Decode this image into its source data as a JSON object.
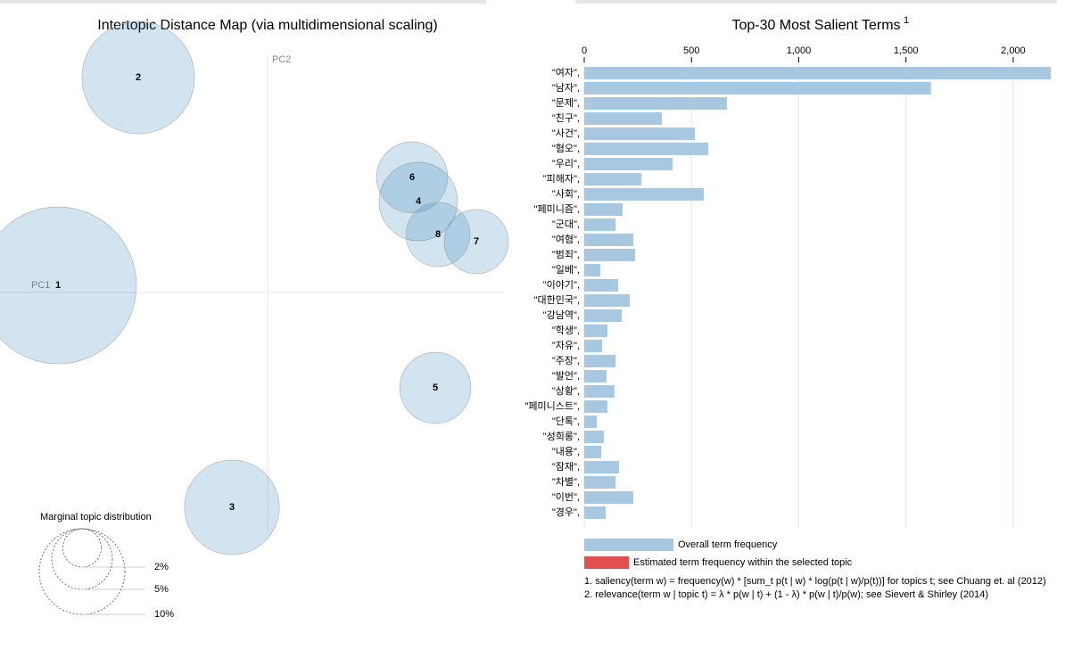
{
  "chart_data": [
    {
      "type": "bubble",
      "title": "Intertopic Distance Map (via multidimensional scaling)",
      "x_label": "PC1",
      "y_label": "PC2",
      "labels": [
        "1",
        "2",
        "3",
        "4",
        "5",
        "6",
        "7",
        "8"
      ],
      "x": [
        -0.235,
        -0.145,
        -0.04,
        0.169,
        0.188,
        0.162,
        0.234,
        0.191
      ],
      "y": [
        0.008,
        0.241,
        -0.241,
        0.102,
        -0.107,
        0.129,
        0.057,
        0.065
      ],
      "sizes": [
        33.5,
        17.2,
        12.2,
        8.4,
        6.9,
        6.9,
        5.6,
        5.6
      ],
      "xlim": [
        -0.3,
        0.265
      ],
      "ylim": [
        -0.281,
        0.284
      ],
      "color": "#1f77b4",
      "size_legend": {
        "title": "Marginal topic distribution",
        "ticks": [
          {
            "value": 2,
            "label": "2%"
          },
          {
            "value": 5,
            "label": "5%"
          },
          {
            "value": 10,
            "label": "10%"
          }
        ]
      }
    },
    {
      "type": "hbar",
      "title": "Top-30 Most Salient Terms",
      "title_note": "1",
      "categories": [
        "\"여자\",",
        "\"남자\",",
        "\"문제\",",
        "\"친구\",",
        "\"사건\",",
        "\"혐오\",",
        "\"우리\",",
        "\"피해자\",",
        "\"사회\",",
        "\"페미니즘\",",
        "\"군대\",",
        "\"여혐\",",
        "\"범죄\",",
        "\"일베\",",
        "\"이야기\",",
        "\"대한민국\",",
        "\"강남역\",",
        "\"학생\",",
        "\"자유\",",
        "\"주장\",",
        "\"발언\",",
        "\"상황\",",
        "\"페미니스트\",",
        "\"단톡\",",
        "\"성희롱\",",
        "\"내용\",",
        "\"잠재\",",
        "\"차별\",",
        "\"이번\",",
        "\"경우\","
      ],
      "series": [
        {
          "name": "Overall term frequency",
          "color": "#a8c8e1",
          "values": [
            2175,
            1617,
            665,
            362,
            516,
            578,
            412,
            266,
            557,
            179,
            146,
            229,
            237,
            75,
            158,
            212,
            175,
            108,
            83,
            146,
            104,
            141,
            108,
            58,
            91,
            79,
            162,
            146,
            229,
            100
          ]
        },
        {
          "name": "Estimated term frequency within the selected topic",
          "color": "#e05050"
        }
      ],
      "xlim": [
        0,
        2175
      ],
      "xticks": [
        0,
        500,
        {
          "value": 1000,
          "label": "1,000"
        },
        {
          "value": 1500,
          "label": "1,500"
        },
        {
          "value": 2000,
          "label": "2,000"
        }
      ],
      "grid": true,
      "footnotes": [
        "1. saliency(term w) = frequency(w) * [sum_t p(t | w) * log(p(t | w)/p(t))] for topics t; see Chuang et. al (2012)",
        "2. relevance(term w | topic t) = λ * p(w | t) + (1 - λ) * p(w | t)/p(w); see Sievert & Shirley (2014)"
      ]
    }
  ]
}
